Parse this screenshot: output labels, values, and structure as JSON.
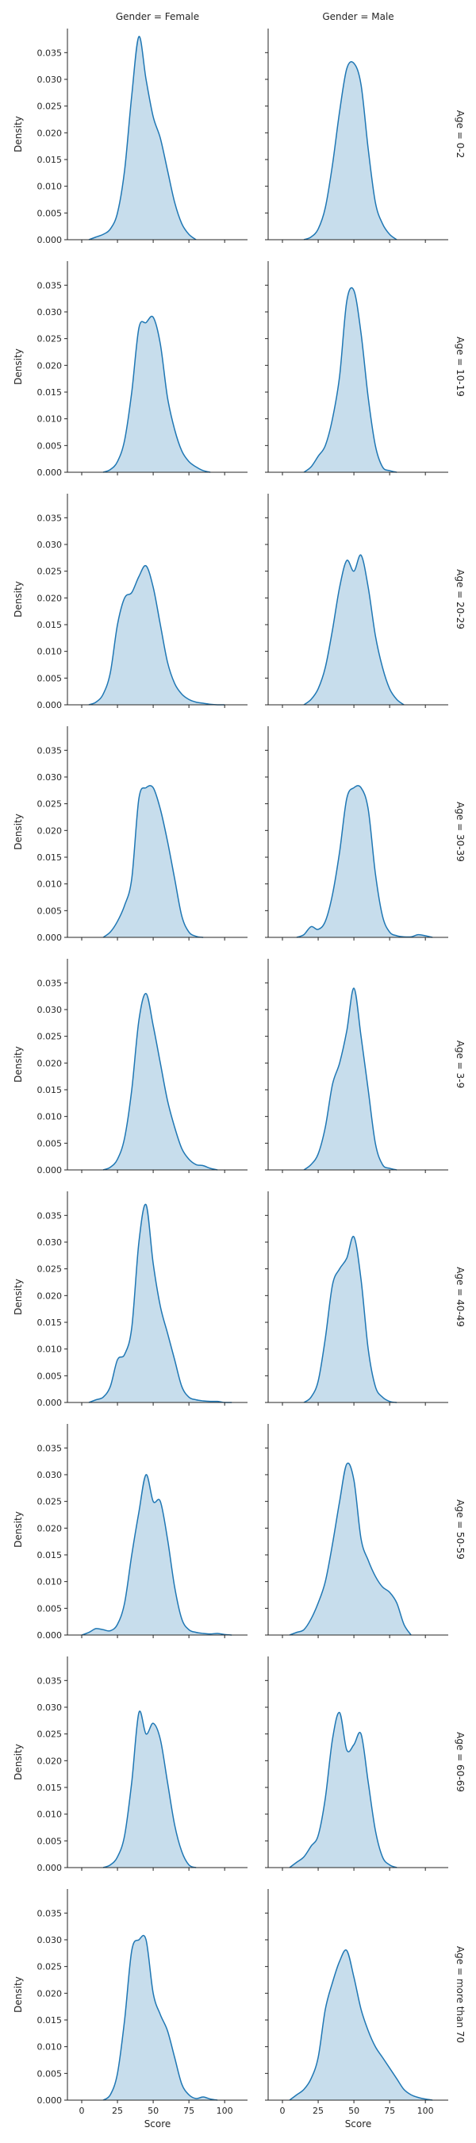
{
  "chart_data": {
    "type": "area",
    "kind": "kde facet grid",
    "col_titles": [
      "Gender = Female",
      "Gender = Male"
    ],
    "row_titles": [
      "Age = 0-2",
      "Age = 10-19",
      "Age = 20-29",
      "Age = 30-39",
      "Age = 3-9",
      "Age = 40-49",
      "Age = 50-59",
      "Age = 60-69",
      "Age = more than 70"
    ],
    "ylabel": "Density",
    "xlabel": "Score",
    "xlim": [
      -10,
      116
    ],
    "ylim": [
      0,
      0.0395
    ],
    "yticks": [
      0.0,
      0.005,
      0.01,
      0.015,
      0.02,
      0.025,
      0.03,
      0.035
    ],
    "ytick_labels": [
      "0.000",
      "0.005",
      "0.010",
      "0.015",
      "0.020",
      "0.025",
      "0.030",
      "0.035"
    ],
    "xticks": [
      0,
      25,
      50,
      75,
      100
    ],
    "xtick_labels": [
      "0",
      "25",
      "50",
      "75",
      "100"
    ],
    "grid": false,
    "legend": "none",
    "color": "#1f77b4",
    "fill_color": "rgba(31,119,180,0.25)",
    "panels": [
      [
        {
          "x": [
            5,
            10,
            15,
            20,
            25,
            30,
            35,
            40,
            45,
            50,
            55,
            60,
            65,
            70,
            75,
            80
          ],
          "y": [
            0.0,
            0.0005,
            0.001,
            0.002,
            0.005,
            0.013,
            0.027,
            0.038,
            0.03,
            0.023,
            0.019,
            0.013,
            0.007,
            0.003,
            0.001,
            0.0
          ]
        },
        {
          "x": [
            15,
            20,
            25,
            30,
            35,
            40,
            45,
            50,
            55,
            60,
            65,
            70,
            75,
            80
          ],
          "y": [
            0.0,
            0.0005,
            0.002,
            0.006,
            0.014,
            0.024,
            0.032,
            0.033,
            0.029,
            0.017,
            0.007,
            0.003,
            0.001,
            0.0
          ]
        }
      ],
      [
        {
          "x": [
            15,
            20,
            25,
            30,
            35,
            40,
            45,
            50,
            55,
            60,
            65,
            70,
            75,
            80,
            85,
            90
          ],
          "y": [
            0.0,
            0.0005,
            0.002,
            0.006,
            0.015,
            0.027,
            0.028,
            0.029,
            0.024,
            0.014,
            0.008,
            0.004,
            0.002,
            0.001,
            0.0003,
            0.0
          ]
        },
        {
          "x": [
            15,
            20,
            25,
            30,
            35,
            40,
            45,
            50,
            55,
            60,
            65,
            70,
            75,
            80
          ],
          "y": [
            0.0,
            0.001,
            0.003,
            0.005,
            0.01,
            0.018,
            0.032,
            0.034,
            0.026,
            0.014,
            0.005,
            0.001,
            0.0003,
            0.0
          ]
        }
      ],
      [
        {
          "x": [
            5,
            10,
            15,
            20,
            25,
            30,
            35,
            40,
            45,
            50,
            55,
            60,
            65,
            70,
            75,
            80,
            85,
            90,
            95,
            100
          ],
          "y": [
            0.0,
            0.0005,
            0.002,
            0.006,
            0.015,
            0.02,
            0.021,
            0.024,
            0.026,
            0.022,
            0.015,
            0.008,
            0.004,
            0.002,
            0.001,
            0.0005,
            0.0003,
            0.0001,
            0.0,
            0.0
          ]
        },
        {
          "x": [
            15,
            20,
            25,
            30,
            35,
            40,
            45,
            50,
            55,
            60,
            65,
            70,
            75,
            80,
            85
          ],
          "y": [
            0.0,
            0.001,
            0.003,
            0.007,
            0.014,
            0.022,
            0.027,
            0.025,
            0.028,
            0.022,
            0.013,
            0.007,
            0.003,
            0.001,
            0.0
          ]
        }
      ],
      [
        {
          "x": [
            15,
            20,
            25,
            30,
            35,
            40,
            45,
            50,
            55,
            60,
            65,
            70,
            75,
            80,
            85
          ],
          "y": [
            0.0,
            0.001,
            0.003,
            0.006,
            0.011,
            0.026,
            0.028,
            0.028,
            0.024,
            0.018,
            0.011,
            0.004,
            0.001,
            0.0002,
            0.0
          ]
        },
        {
          "x": [
            10,
            15,
            20,
            25,
            30,
            35,
            40,
            45,
            50,
            55,
            60,
            65,
            70,
            75,
            80,
            85,
            90,
            95,
            100,
            105
          ],
          "y": [
            0.0,
            0.0005,
            0.002,
            0.0015,
            0.003,
            0.008,
            0.016,
            0.026,
            0.028,
            0.028,
            0.024,
            0.012,
            0.004,
            0.001,
            0.0003,
            0.0001,
            0.0001,
            0.0005,
            0.0003,
            0.0
          ]
        }
      ],
      [
        {
          "x": [
            15,
            20,
            25,
            30,
            35,
            40,
            45,
            50,
            55,
            60,
            65,
            70,
            75,
            80,
            85,
            90,
            95
          ],
          "y": [
            0.0,
            0.0005,
            0.002,
            0.006,
            0.015,
            0.028,
            0.033,
            0.027,
            0.02,
            0.013,
            0.008,
            0.004,
            0.002,
            0.001,
            0.0008,
            0.0003,
            0.0
          ]
        },
        {
          "x": [
            15,
            20,
            25,
            30,
            35,
            40,
            45,
            50,
            55,
            60,
            65,
            70,
            75,
            80
          ],
          "y": [
            0.0,
            0.001,
            0.003,
            0.008,
            0.016,
            0.02,
            0.026,
            0.034,
            0.025,
            0.015,
            0.005,
            0.001,
            0.0003,
            0.0
          ]
        }
      ],
      [
        {
          "x": [
            5,
            10,
            15,
            20,
            25,
            30,
            35,
            40,
            45,
            50,
            55,
            60,
            65,
            70,
            75,
            80,
            85,
            90,
            95,
            100,
            105
          ],
          "y": [
            0.0,
            0.0005,
            0.001,
            0.003,
            0.008,
            0.009,
            0.014,
            0.03,
            0.037,
            0.026,
            0.018,
            0.013,
            0.008,
            0.003,
            0.001,
            0.0005,
            0.0003,
            0.0002,
            0.0002,
            0.0,
            0.0
          ]
        },
        {
          "x": [
            15,
            20,
            25,
            30,
            35,
            40,
            45,
            50,
            55,
            60,
            65,
            70,
            75,
            80
          ],
          "y": [
            0.0,
            0.001,
            0.004,
            0.012,
            0.022,
            0.025,
            0.027,
            0.031,
            0.023,
            0.01,
            0.003,
            0.001,
            0.0002,
            0.0
          ]
        }
      ],
      [
        {
          "x": [
            0,
            5,
            10,
            15,
            20,
            25,
            30,
            35,
            40,
            45,
            50,
            55,
            60,
            65,
            70,
            75,
            80,
            85,
            90,
            95,
            100,
            105
          ],
          "y": [
            0.0,
            0.0005,
            0.0012,
            0.001,
            0.0008,
            0.002,
            0.006,
            0.015,
            0.023,
            0.03,
            0.025,
            0.025,
            0.018,
            0.009,
            0.003,
            0.001,
            0.0005,
            0.0003,
            0.0002,
            0.0003,
            0.0001,
            0.0
          ]
        },
        {
          "x": [
            5,
            10,
            15,
            20,
            25,
            30,
            35,
            40,
            45,
            50,
            55,
            60,
            65,
            70,
            75,
            80,
            85,
            90
          ],
          "y": [
            0.0,
            0.0005,
            0.001,
            0.003,
            0.006,
            0.01,
            0.017,
            0.025,
            0.032,
            0.029,
            0.018,
            0.014,
            0.011,
            0.009,
            0.008,
            0.006,
            0.002,
            0.0
          ]
        }
      ],
      [
        {
          "x": [
            15,
            20,
            25,
            30,
            35,
            40,
            45,
            50,
            55,
            60,
            65,
            70,
            75,
            80
          ],
          "y": [
            0.0,
            0.0005,
            0.002,
            0.006,
            0.016,
            0.029,
            0.025,
            0.027,
            0.024,
            0.016,
            0.008,
            0.003,
            0.0005,
            0.0
          ]
        },
        {
          "x": [
            5,
            10,
            15,
            20,
            25,
            30,
            35,
            40,
            45,
            50,
            55,
            60,
            65,
            70,
            75,
            80
          ],
          "y": [
            0.0,
            0.001,
            0.002,
            0.004,
            0.006,
            0.013,
            0.024,
            0.029,
            0.022,
            0.023,
            0.025,
            0.016,
            0.007,
            0.002,
            0.0005,
            0.0
          ]
        }
      ],
      [
        {
          "x": [
            15,
            20,
            25,
            30,
            35,
            40,
            45,
            50,
            55,
            60,
            65,
            70,
            75,
            80,
            85,
            90,
            95
          ],
          "y": [
            0.0,
            0.001,
            0.005,
            0.015,
            0.028,
            0.03,
            0.03,
            0.02,
            0.016,
            0.013,
            0.008,
            0.003,
            0.001,
            0.0003,
            0.0006,
            0.0002,
            0.0
          ]
        },
        {
          "x": [
            5,
            10,
            15,
            20,
            25,
            30,
            35,
            40,
            45,
            50,
            55,
            60,
            65,
            70,
            75,
            80,
            85,
            90,
            95,
            100,
            105
          ],
          "y": [
            0.0,
            0.001,
            0.002,
            0.004,
            0.008,
            0.017,
            0.022,
            0.026,
            0.028,
            0.023,
            0.017,
            0.013,
            0.01,
            0.008,
            0.006,
            0.004,
            0.002,
            0.001,
            0.0005,
            0.0002,
            0.0
          ]
        }
      ]
    ]
  }
}
